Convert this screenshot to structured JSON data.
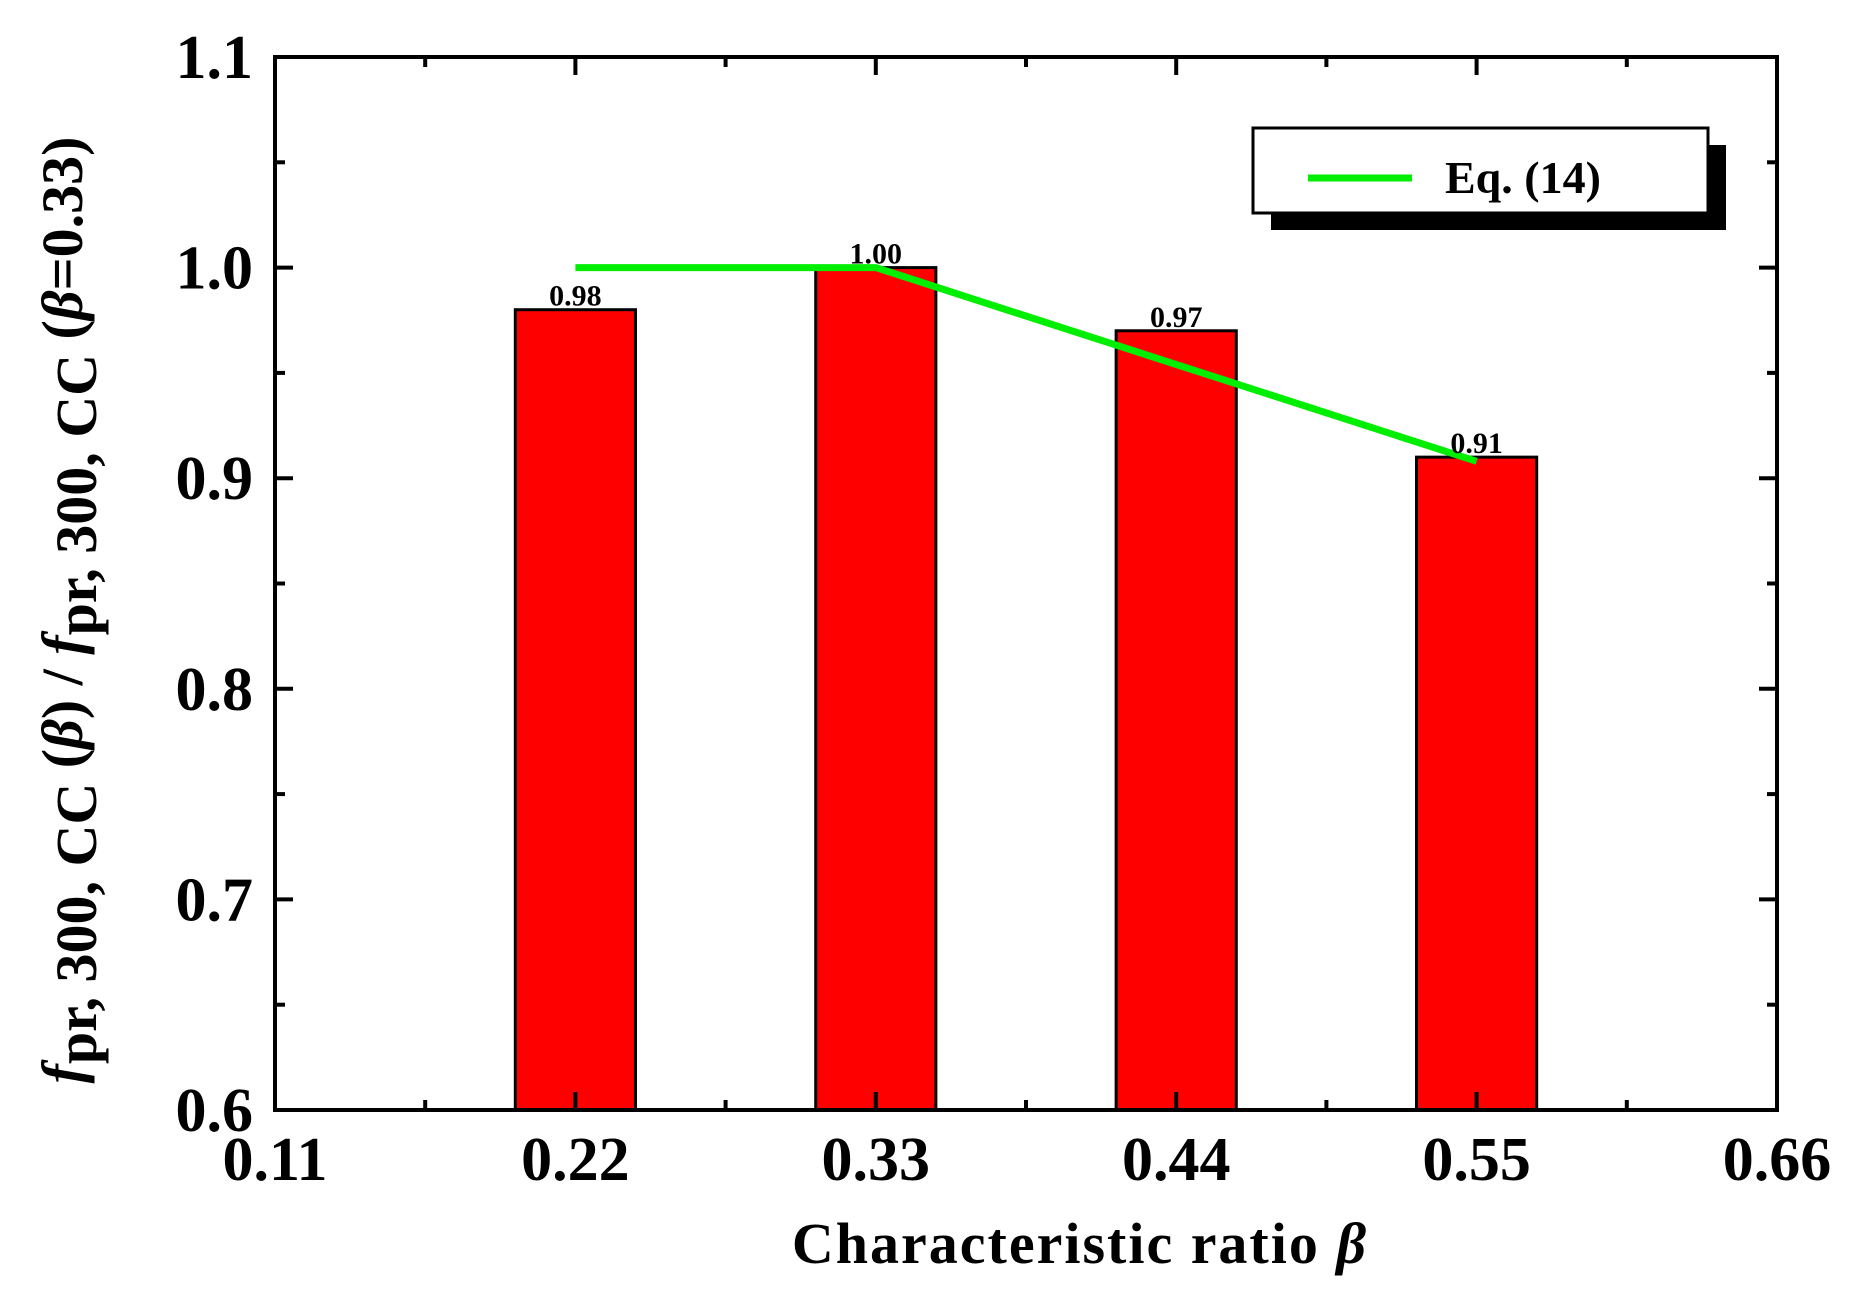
{
  "chart_data": {
    "type": "bar",
    "title": "",
    "xlabel": "Characteristic ratio β",
    "ylabel": "f_pr, 300, CC (β) / f_pr, 300, CC (β=0.33)",
    "ylabel_parts": {
      "f1": "f",
      "sub1": "pr, 300, CC",
      "mid": " (",
      "beta1": "β",
      "close1": ") / ",
      "f2": "f",
      "sub2": "pr, 300, CC",
      "mid2": " (",
      "beta2": "β",
      "tail": "=0.33)"
    },
    "xlabel_parts": {
      "text": "Characteristic ratio ",
      "beta": "β"
    },
    "xlim": [
      0.11,
      0.66
    ],
    "ylim": [
      0.6,
      1.1
    ],
    "xticks": [
      "0.11",
      "0.22",
      "0.33",
      "0.44",
      "0.55",
      "0.66"
    ],
    "yticks": [
      "0.6",
      "0.7",
      "0.8",
      "0.9",
      "1.0",
      "1.1"
    ],
    "bar_width": 0.044,
    "bars": {
      "x": [
        0.22,
        0.33,
        0.44,
        0.55
      ],
      "values": [
        0.98,
        1.0,
        0.97,
        0.91
      ],
      "labels": [
        "0.98",
        "1.00",
        "0.97",
        "0.91"
      ],
      "color": "#ff0000"
    },
    "series": [
      {
        "name": "Eq. (14)",
        "type": "line",
        "color": "#00ee00",
        "x": [
          0.22,
          0.33,
          0.55
        ],
        "y": [
          1.0,
          1.0,
          0.908
        ]
      }
    ],
    "legend": {
      "position": "top-right",
      "entries": [
        "Eq. (14)"
      ]
    }
  }
}
